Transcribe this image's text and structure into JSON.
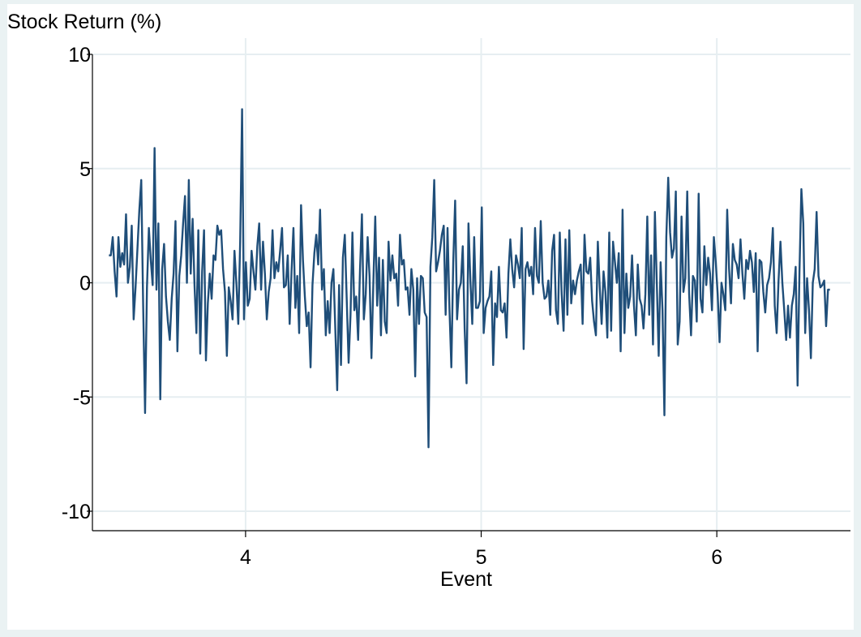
{
  "chart_data": {
    "type": "line",
    "ylabel": "Stock Return (%)",
    "xlabel": "Event",
    "ylim": [
      -10,
      10
    ],
    "yticks": [
      -10,
      -5,
      0,
      5,
      10
    ],
    "ytick_labels": [
      "-10",
      "-5",
      "0",
      "5",
      "10"
    ],
    "xlim": [
      3.35,
      6.55
    ],
    "xticks": [
      4,
      5,
      6
    ],
    "xtick_labels": [
      "4",
      "5",
      "6"
    ],
    "grid": true,
    "colors": {
      "line": "#1f4e79",
      "grid": "#e6eef1",
      "axis": "#000000",
      "background_outer": "#eaf2f3"
    },
    "series": [
      {
        "x_start": 3.42,
        "x_end": 6.48,
        "values": [
          1.2,
          1.2,
          2.0,
          0.5,
          -0.6,
          2.0,
          0.7,
          1.3,
          0.8,
          3.0,
          0.0,
          0.7,
          2.5,
          -1.6,
          -0.2,
          1.5,
          3.2,
          4.5,
          -1.0,
          -5.7,
          -0.2,
          2.4,
          1.0,
          -0.1,
          5.9,
          -0.3,
          2.6,
          -5.1,
          0.6,
          1.7,
          -0.6,
          -1.7,
          -2.5,
          -0.7,
          0.4,
          2.7,
          -3.0,
          0.3,
          1.2,
          2.6,
          3.8,
          0.0,
          4.5,
          0.4,
          2.8,
          -0.1,
          -2.2,
          2.3,
          -3.1,
          0.5,
          2.3,
          -3.4,
          -0.9,
          0.4,
          -0.7,
          1.2,
          1.0,
          2.5,
          2.1,
          2.3,
          0.6,
          -0.4,
          -3.2,
          -0.2,
          -0.8,
          -1.6,
          1.4,
          0.0,
          -1.8,
          1.8,
          7.6,
          -1.6,
          0.9,
          -1.0,
          -0.7,
          1.4,
          0.5,
          -0.3,
          1.6,
          2.6,
          -0.3,
          1.8,
          0.4,
          -1.6,
          -0.4,
          0.2,
          2.3,
          0.2,
          0.9,
          0.5,
          1.4,
          2.4,
          -0.2,
          -0.1,
          1.2,
          -1.8,
          0.5,
          2.4,
          -1.1,
          0.3,
          -2.2,
          3.4,
          1.0,
          -0.6,
          -1.9,
          -1.3,
          -3.7,
          -0.1,
          1.3,
          2.1,
          0.8,
          3.2,
          -0.3,
          0.6,
          -2.3,
          -0.8,
          -2.2,
          0.0,
          0.6,
          -2.0,
          -4.7,
          -0.1,
          -3.6,
          1.1,
          2.1,
          -0.7,
          -3.5,
          -1.4,
          2.2,
          -1.2,
          -0.6,
          -2.5,
          0.6,
          3.0,
          -1.6,
          -0.5,
          2.0,
          0.3,
          -3.3,
          0.0,
          2.9,
          -1.0,
          1.1,
          -2.3,
          1.0,
          -1.7,
          -2.2,
          1.8,
          0.1,
          1.2,
          0.2,
          0.4,
          -1.0,
          2.1,
          0.8,
          1.0,
          -0.3,
          -0.2,
          -1.4,
          0.6,
          -0.3,
          -4.1,
          0.2,
          -1.8,
          0.3,
          0.2,
          -1.3,
          -1.5,
          -7.2,
          0.7,
          2.0,
          4.5,
          0.5,
          0.9,
          1.4,
          2.1,
          2.5,
          -1.4,
          2.4,
          -1.1,
          -3.7,
          0.9,
          3.6,
          -1.6,
          -0.3,
          0.0,
          1.6,
          -2.0,
          -4.4,
          2.6,
          0.1,
          -1.8,
          2.0,
          -1.1,
          -1.1,
          -0.8,
          3.3,
          -2.2,
          -1.1,
          -0.8,
          -0.6,
          0.5,
          -3.6,
          -0.9,
          -1.5,
          0.7,
          -1.2,
          -1.3,
          -0.9,
          -2.4,
          0.4,
          1.9,
          0.6,
          -0.2,
          1.2,
          0.8,
          0.2,
          2.4,
          -2.9,
          0.6,
          0.9,
          0.3,
          0.7,
          -0.5,
          2.4,
          0.3,
          0.0,
          2.7,
          0.0,
          -0.7,
          -0.6,
          0.1,
          -1.4,
          1.4,
          2.1,
          -1.2,
          -1.8,
          2.2,
          -0.5,
          -2.1,
          1.9,
          -1.4,
          2.3,
          -0.9,
          0.1,
          -0.5,
          0.1,
          0.5,
          0.8,
          -1.8,
          2.1,
          0.5,
          0.4,
          1.1,
          -0.8,
          -1.7,
          -2.3,
          1.8,
          -0.2,
          -1.8,
          0.5,
          -0.4,
          -2.4,
          2.2,
          -2.1,
          1.8,
          0.9,
          0.0,
          1.3,
          -3.0,
          3.2,
          -2.2,
          0.4,
          -1.1,
          -0.6,
          1.2,
          -1.0,
          -2.3,
          0.8,
          -0.7,
          -1.0,
          -2.0,
          -0.5,
          2.9,
          -1.4,
          1.2,
          -2.7,
          3.1,
          0.0,
          -3.2,
          0.9,
          -1.2,
          -5.8,
          2.0,
          4.6,
          2.2,
          1.1,
          1.5,
          4.0,
          -2.7,
          -1.7,
          2.9,
          -0.4,
          0.2,
          4.0,
          -0.5,
          -2.3,
          0.3,
          0.1,
          -1.7,
          3.9,
          -0.7,
          -1.3,
          1.6,
          -0.1,
          1.1,
          0.4,
          -1.2,
          2.0,
          0.9,
          -0.5,
          -2.6,
          0.0,
          -0.5,
          -1.2,
          3.2,
          0.6,
          -0.9,
          1.7,
          1.0,
          0.8,
          0.2,
          1.9,
          0.4,
          -0.7,
          1.0,
          0.6,
          1.4,
          0.9,
          -0.4,
          1.3,
          -3.0,
          1.0,
          0.9,
          -0.4,
          -1.3,
          -0.1,
          0.2,
          0.9,
          2.4,
          -1.0,
          -2.2,
          0.1,
          1.8,
          0.0,
          -1.2,
          -2.5,
          -1.0,
          -2.4,
          -1.0,
          -0.5,
          0.7,
          -4.5,
          0.5,
          4.1,
          2.6,
          -2.2,
          0.2,
          -1.2,
          -3.3,
          0.0,
          0.6,
          3.1,
          0.3,
          -0.2,
          -0.1,
          0.1,
          -1.9,
          -0.3,
          -0.3
        ]
      }
    ]
  }
}
